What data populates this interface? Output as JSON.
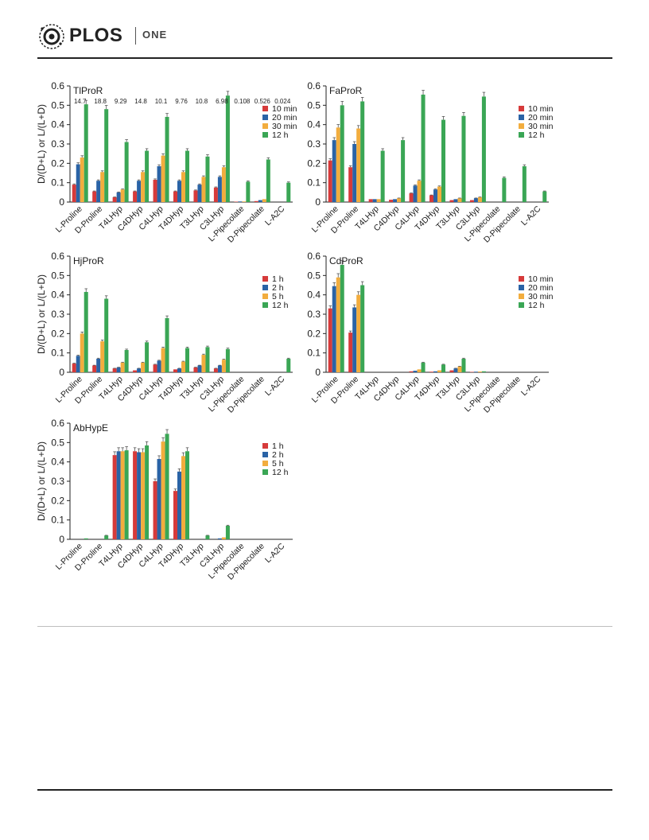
{
  "header": {
    "brand": "PLOS",
    "journal": "ONE",
    "colors": {
      "logo": "#222222",
      "rule": "#222222"
    }
  },
  "colors": {
    "series": [
      "#d63a3a",
      "#2a63a6",
      "#f2ad3e",
      "#3aa655"
    ]
  },
  "chart_data": [
    {
      "type": "bar",
      "title": "TlProR",
      "ylabel": "D/(D+L) or L/(L+D)",
      "ylim": [
        0,
        0.6
      ],
      "yticks": [
        "0",
        "0.1",
        "0.2",
        "0.3",
        "0.4",
        "0.5",
        "0.6"
      ],
      "legend_position": "right",
      "categories": [
        "L-Proline",
        "D-Proline",
        "T4LHyp",
        "C4DHyp",
        "C4LHyp",
        "T4DHyp",
        "T3LHyp",
        "C3LHyp",
        "L-Pipecolate",
        "D-Pipecolate",
        "L-A2C"
      ],
      "annotations": [
        "14.7",
        "18.8",
        "9.29",
        "14.8",
        "10.1",
        "9.76",
        "10.8",
        "6.98",
        "0.108",
        "0.526",
        "0.024"
      ],
      "series": [
        {
          "name": "10 min",
          "values": [
            0.09,
            0.055,
            0.025,
            0.055,
            0.115,
            0.055,
            0.06,
            0.075,
            0.002,
            0.005,
            0.0
          ]
        },
        {
          "name": "20 min",
          "values": [
            0.195,
            0.11,
            0.05,
            0.11,
            0.185,
            0.11,
            0.09,
            0.13,
            0.003,
            0.01,
            0.0
          ]
        },
        {
          "name": "30 min",
          "values": [
            0.23,
            0.155,
            0.065,
            0.155,
            0.24,
            0.155,
            0.13,
            0.18,
            0.003,
            0.015,
            0.0
          ]
        },
        {
          "name": "12 h",
          "values": [
            0.505,
            0.48,
            0.31,
            0.265,
            0.44,
            0.265,
            0.235,
            0.55,
            0.105,
            0.22,
            0.1
          ]
        }
      ]
    },
    {
      "type": "bar",
      "title": "FaProR",
      "ylabel": "",
      "ylim": [
        0,
        0.6
      ],
      "yticks": [
        "0",
        "0.1",
        "0.2",
        "0.3",
        "0.4",
        "0.5",
        "0.6"
      ],
      "legend_position": "right",
      "categories": [
        "L-Proline",
        "D-Proline",
        "T4LHyp",
        "C4DHyp",
        "C4LHyp",
        "T4DHyp",
        "T3LHyp",
        "C3LHyp",
        "L-Pipecolate",
        "D-Pipecolate",
        "L-A2C"
      ],
      "annotations": [],
      "series": [
        {
          "name": "10 min",
          "values": [
            0.215,
            0.18,
            0.015,
            0.012,
            0.045,
            0.035,
            0.01,
            0.01,
            0.0,
            0.0,
            0.0
          ]
        },
        {
          "name": "20 min",
          "values": [
            0.32,
            0.3,
            0.015,
            0.015,
            0.085,
            0.065,
            0.015,
            0.02,
            0.0,
            0.0,
            0.0
          ]
        },
        {
          "name": "30 min",
          "values": [
            0.385,
            0.38,
            0.015,
            0.02,
            0.11,
            0.08,
            0.02,
            0.025,
            0.0,
            0.0,
            0.0
          ]
        },
        {
          "name": "12 h",
          "values": [
            0.5,
            0.52,
            0.265,
            0.32,
            0.555,
            0.425,
            0.445,
            0.545,
            0.125,
            0.185,
            0.055
          ]
        }
      ]
    },
    {
      "type": "bar",
      "title": "HjProR",
      "ylabel": "D/(D+L) or L/(L+D)",
      "ylim": [
        0,
        0.6
      ],
      "yticks": [
        "0",
        "0.1",
        "0.2",
        "0.3",
        "0.4",
        "0.5",
        "0.6"
      ],
      "legend_position": "right",
      "categories": [
        "L-Proline",
        "D-Proline",
        "T4LHyp",
        "C4DHyp",
        "C4LHyp",
        "T4DHyp",
        "T3LHyp",
        "C3LHyp",
        "L-Pipecolate",
        "D-Pipecolate",
        "L-A2C"
      ],
      "annotations": [],
      "series": [
        {
          "name": "1 h",
          "values": [
            0.045,
            0.035,
            0.02,
            0.01,
            0.04,
            0.015,
            0.025,
            0.02,
            0.0,
            0.0,
            0.0
          ]
        },
        {
          "name": "2 h",
          "values": [
            0.085,
            0.07,
            0.025,
            0.02,
            0.06,
            0.02,
            0.035,
            0.035,
            0.0,
            0.0,
            0.0
          ]
        },
        {
          "name": "5 h",
          "values": [
            0.2,
            0.16,
            0.05,
            0.05,
            0.125,
            0.055,
            0.09,
            0.065,
            0.0,
            0.0,
            0.0
          ]
        },
        {
          "name": "12 h",
          "values": [
            0.415,
            0.38,
            0.115,
            0.155,
            0.28,
            0.125,
            0.13,
            0.12,
            0.0,
            0.0,
            0.07
          ]
        }
      ]
    },
    {
      "type": "bar",
      "title": "CdProR",
      "ylabel": "",
      "ylim": [
        0,
        0.6
      ],
      "yticks": [
        "0",
        "0.1",
        "0.2",
        "0.3",
        "0.4",
        "0.5",
        "0.6"
      ],
      "legend_position": "right",
      "categories": [
        "L-Proline",
        "D-Proline",
        "T4LHyp",
        "C4DHyp",
        "C4LHyp",
        "T4DHyp",
        "T3LHyp",
        "C3LHyp",
        "L-Pipecolate",
        "D-Pipecolate",
        "L-A2C"
      ],
      "annotations": [],
      "series": [
        {
          "name": "10 min",
          "values": [
            0.33,
            0.205,
            0.0,
            0.0,
            0.005,
            0.003,
            0.01,
            0.002,
            0.0,
            0.0,
            0.0
          ]
        },
        {
          "name": "20 min",
          "values": [
            0.445,
            0.335,
            0.0,
            0.0,
            0.008,
            0.005,
            0.02,
            0.003,
            0.0,
            0.0,
            0.0
          ]
        },
        {
          "name": "30 min",
          "values": [
            0.49,
            0.4,
            0.0,
            0.0,
            0.015,
            0.01,
            0.03,
            0.004,
            0.0,
            0.0,
            0.0
          ]
        },
        {
          "name": "12 h",
          "values": [
            0.555,
            0.45,
            0.0,
            0.0,
            0.05,
            0.04,
            0.07,
            0.005,
            0.0,
            0.0,
            0.0
          ]
        }
      ]
    },
    {
      "type": "bar",
      "title": "AbHypE",
      "ylabel": "D/(D+L) or L/(L+D)",
      "ylim": [
        0,
        0.6
      ],
      "yticks": [
        "0",
        "0.1",
        "0.2",
        "0.3",
        "0.4",
        "0.5",
        "0.6"
      ],
      "legend_position": "right",
      "categories": [
        "L-Proline",
        "D-Proline",
        "T4LHyp",
        "C4DHyp",
        "C4LHyp",
        "T4DHyp",
        "T3LHyp",
        "C3LHyp",
        "L-Pipecolate",
        "D-Pipecolate",
        "L-A2C"
      ],
      "annotations": [],
      "series": [
        {
          "name": "1 h",
          "values": [
            0.0,
            0.0,
            0.435,
            0.455,
            0.3,
            0.25,
            0.0,
            0.0,
            0.0,
            0.0,
            0.0
          ]
        },
        {
          "name": "2 h",
          "values": [
            0.0,
            0.0,
            0.455,
            0.45,
            0.415,
            0.35,
            0.0,
            0.005,
            0.0,
            0.0,
            0.0
          ]
        },
        {
          "name": "5 h",
          "values": [
            0.0,
            0.0,
            0.455,
            0.45,
            0.505,
            0.43,
            0.0,
            0.01,
            0.0,
            0.0,
            0.0
          ]
        },
        {
          "name": "12 h",
          "values": [
            0.005,
            0.02,
            0.46,
            0.485,
            0.545,
            0.455,
            0.02,
            0.07,
            0.0,
            0.0,
            0.0
          ]
        }
      ]
    }
  ]
}
